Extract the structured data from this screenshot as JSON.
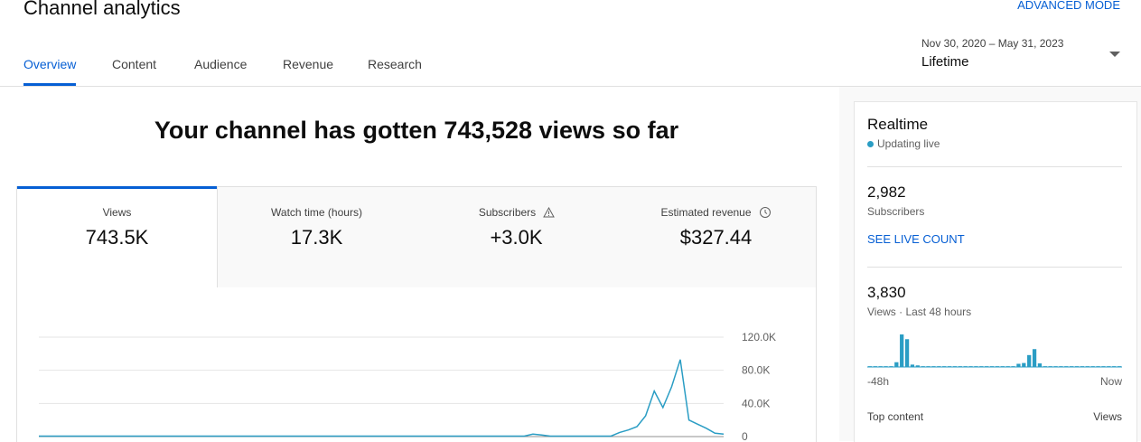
{
  "header": {
    "title": "Channel analytics",
    "advanced_mode": "ADVANCED MODE",
    "tabs": [
      "Overview",
      "Content",
      "Audience",
      "Revenue",
      "Research"
    ],
    "date_range": "Nov 30, 2020 – May 31, 2023",
    "period": "Lifetime"
  },
  "headline": "Your channel has gotten 743,528 views so far",
  "metrics": [
    {
      "label": "Views",
      "value": "743.5K"
    },
    {
      "label": "Watch time (hours)",
      "value": "17.3K"
    },
    {
      "label": "Subscribers",
      "value": "+3.0K"
    },
    {
      "label": "Estimated revenue",
      "value": "$327.44"
    }
  ],
  "realtime": {
    "title": "Realtime",
    "status": "Updating live",
    "subscribers": "2,982",
    "subscribers_label": "Subscribers",
    "live_count": "SEE LIVE COUNT",
    "views": "3,830",
    "views_label": "Views · Last 48 hours",
    "x_start": "-48h",
    "x_end": "Now",
    "top_content": "Top content",
    "top_content_metric": "Views"
  },
  "chart_data": [
    {
      "type": "line",
      "color": "#2a9dc4",
      "ylim": [
        0,
        120000
      ],
      "yticks": [
        {
          "value": 0,
          "label": "0"
        },
        {
          "value": 40000,
          "label": "40.0K"
        },
        {
          "value": 80000,
          "label": "80.0K"
        },
        {
          "value": 120000,
          "label": "120.0K"
        }
      ],
      "grid": true,
      "values": [
        500,
        500,
        500,
        500,
        500,
        500,
        500,
        500,
        500,
        500,
        500,
        500,
        500,
        500,
        500,
        500,
        500,
        500,
        500,
        500,
        500,
        500,
        500,
        500,
        500,
        500,
        500,
        500,
        500,
        500,
        500,
        500,
        500,
        500,
        500,
        500,
        500,
        500,
        500,
        500,
        500,
        500,
        500,
        500,
        500,
        500,
        500,
        500,
        500,
        500,
        500,
        500,
        500,
        500,
        500,
        500,
        500,
        3000,
        2000,
        500,
        500,
        500,
        500,
        500,
        500,
        500,
        500,
        5000,
        8000,
        12000,
        25000,
        55000,
        35000,
        60000,
        93000,
        20000,
        15000,
        10000,
        4000,
        3000
      ]
    },
    {
      "type": "bar",
      "color": "#2a9dc4",
      "values": [
        20,
        20,
        20,
        20,
        20,
        120,
        820,
        700,
        60,
        40,
        20,
        20,
        20,
        20,
        20,
        20,
        20,
        20,
        20,
        20,
        20,
        20,
        20,
        20,
        20,
        20,
        20,
        20,
        80,
        100,
        300,
        450,
        90,
        20,
        20,
        20,
        20,
        20,
        20,
        20,
        20,
        20,
        20,
        20,
        20,
        20,
        20,
        20
      ]
    }
  ]
}
